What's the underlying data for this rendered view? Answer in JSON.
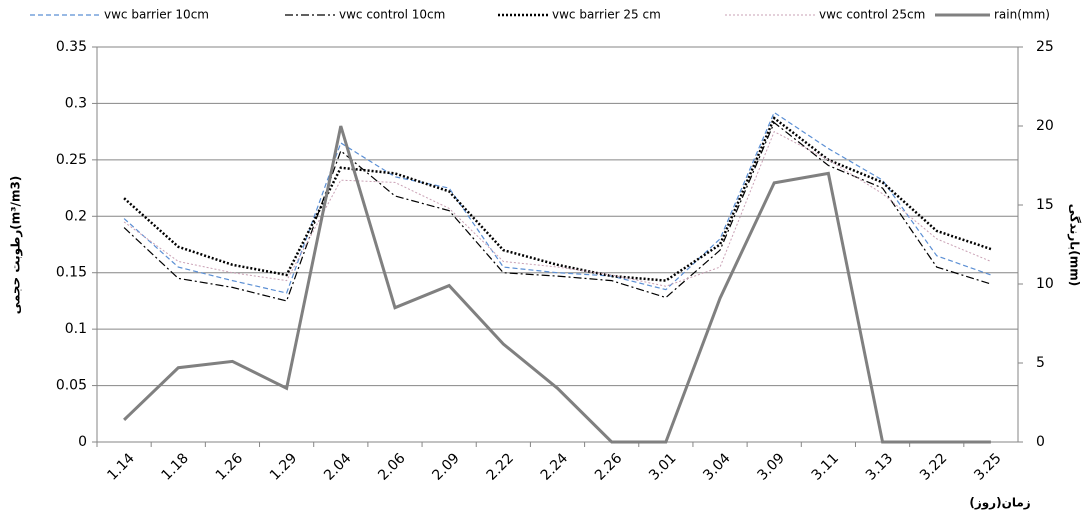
{
  "chart_data": {
    "type": "line",
    "y_label": "رطوبت حجمی(m³/m3)",
    "y2_label": "بارندگی(mm)",
    "x_label": "زمان(روز)",
    "categories": [
      "1.14",
      "1.18",
      "1.26",
      "1.29",
      "2.04",
      "2.06",
      "2.09",
      "2.22",
      "2.24",
      "2.26",
      "3.01",
      "3.04",
      "3.09",
      "3.11",
      "3.13",
      "3.22",
      "3.25"
    ],
    "ylim": [
      0,
      0.35
    ],
    "yticks": [
      0,
      0.05,
      0.1,
      0.15,
      0.2,
      0.25,
      0.3,
      0.35
    ],
    "y2lim": [
      0,
      25
    ],
    "y2ticks": [
      0,
      5,
      10,
      15,
      20,
      25
    ],
    "grid": true,
    "legend": "top",
    "series": [
      {
        "name": "vwc  barrier 10cm",
        "color": "#5b8fd4",
        "style": "dashed",
        "line_width": 1.2,
        "values": [
          0.198,
          0.155,
          0.143,
          0.132,
          0.265,
          0.235,
          0.225,
          0.155,
          0.15,
          0.147,
          0.135,
          0.18,
          0.292,
          0.26,
          0.232,
          0.165,
          0.148
        ]
      },
      {
        "name": "vwc  control 10cm",
        "color": "#000000",
        "style": "dashdot",
        "line_width": 1.2,
        "values": [
          0.19,
          0.145,
          0.137,
          0.125,
          0.258,
          0.218,
          0.205,
          0.15,
          0.147,
          0.143,
          0.128,
          0.17,
          0.283,
          0.245,
          0.225,
          0.155,
          0.14
        ]
      },
      {
        "name": "vwc  barrier 25 cm",
        "color": "#000000",
        "style": "dotted",
        "line_width": 2.5,
        "values": [
          0.216,
          0.173,
          0.157,
          0.148,
          0.243,
          0.238,
          0.222,
          0.17,
          0.157,
          0.147,
          0.143,
          0.175,
          0.287,
          0.25,
          0.23,
          0.187,
          0.171
        ]
      },
      {
        "name": "vwc  control 25cm",
        "color": "#c9a0b4",
        "style": "dotted",
        "line_width": 1,
        "values": [
          0.195,
          0.16,
          0.15,
          0.143,
          0.232,
          0.23,
          0.207,
          0.16,
          0.155,
          0.148,
          0.138,
          0.155,
          0.275,
          0.25,
          0.22,
          0.18,
          0.16
        ]
      },
      {
        "name": "rain(mm)",
        "color": "#808080",
        "style": "solid",
        "line_width": 3,
        "axis": "y2",
        "values": [
          1.4,
          4.7,
          5.1,
          3.4,
          20,
          8.5,
          9.9,
          6.2,
          3.4,
          0,
          0,
          9.1,
          16.4,
          17,
          0,
          0,
          0
        ]
      }
    ]
  }
}
